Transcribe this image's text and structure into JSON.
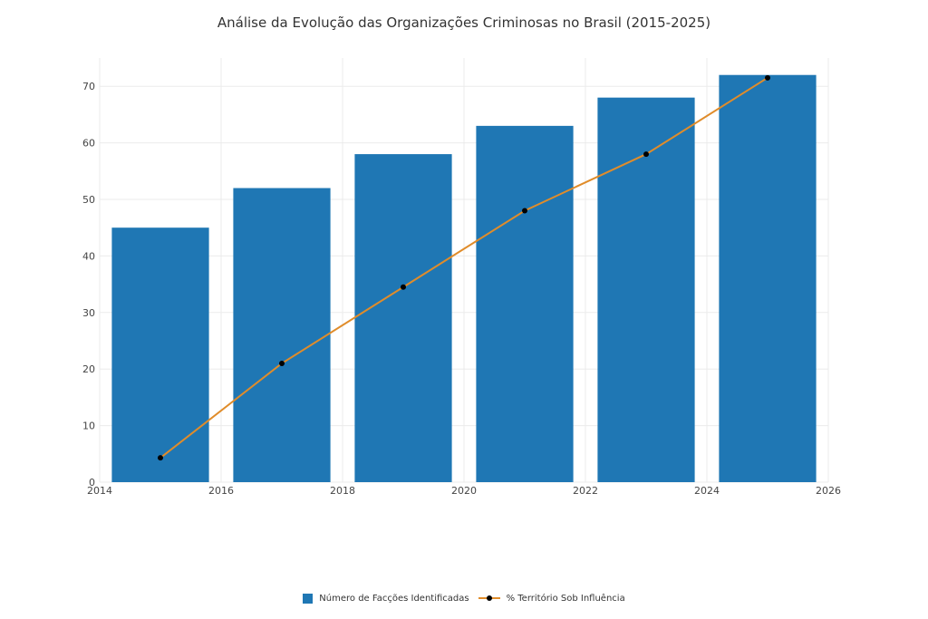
{
  "chart_data": {
    "type": "bar",
    "title": "Análise da Evolução das Organizações Criminosas no Brasil (2015-2025)",
    "xlabel": "",
    "ylabel": "",
    "xlim": [
      2014,
      2026
    ],
    "ylim": [
      0,
      75
    ],
    "x_ticks": [
      "2014",
      "2016",
      "2018",
      "2020",
      "2022",
      "2024",
      "2026"
    ],
    "y_ticks": [
      "0",
      "10",
      "20",
      "30",
      "40",
      "50",
      "60",
      "70"
    ],
    "grid": true,
    "legend_position": "bottom-center",
    "series": [
      {
        "name": "Número de Facções Identificadas",
        "type": "bar",
        "color": "#1f77b4",
        "x": [
          2015,
          2017,
          2019,
          2021,
          2023,
          2025
        ],
        "values": [
          45,
          52,
          58,
          63,
          68,
          72
        ]
      },
      {
        "name": "% Território Sob Influência",
        "type": "line",
        "color": "#e08c2a",
        "marker_color": "#000000",
        "x": [
          2015,
          2017,
          2019,
          2021,
          2023,
          2025
        ],
        "values": [
          4.3,
          21,
          34.5,
          48,
          58,
          71.5
        ]
      }
    ]
  }
}
